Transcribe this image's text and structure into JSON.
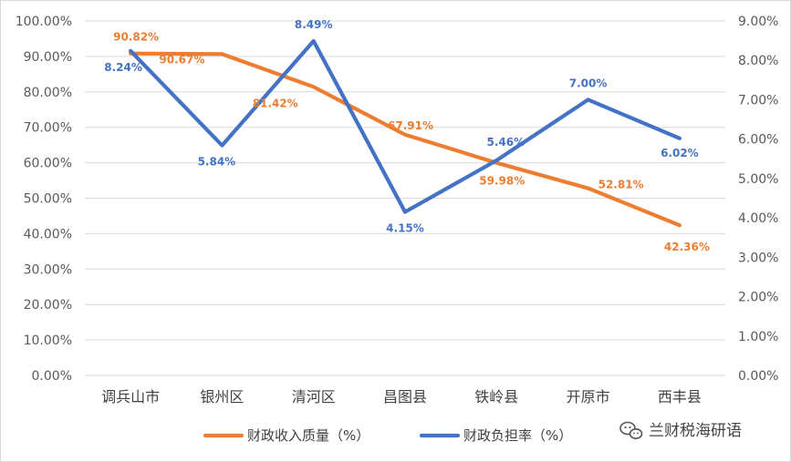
{
  "chart_data": {
    "type": "line",
    "categories": [
      "调兵山市",
      "银州区",
      "清河区",
      "昌图县",
      "铁岭县",
      "开原市",
      "西丰县"
    ],
    "series": [
      {
        "name": "财政收入质量（%）",
        "axis": "left",
        "color": "#ED7D31",
        "values": [
          90.82,
          90.67,
          81.42,
          67.91,
          59.98,
          52.81,
          42.36
        ],
        "labels": [
          "90.82%",
          "90.67%",
          "81.42%",
          "67.91%",
          "59.98%",
          "52.81%",
          "42.36%"
        ]
      },
      {
        "name": "财政负担率（%）",
        "axis": "right",
        "color": "#4472C4",
        "values": [
          8.24,
          5.84,
          8.49,
          4.15,
          5.46,
          7.0,
          6.02
        ],
        "labels": [
          "8.24%",
          "5.84%",
          "8.49%",
          "4.15%",
          "5.46%",
          "7.00%",
          "6.02%"
        ]
      }
    ],
    "y_left": {
      "min": 0,
      "max": 100,
      "ticks": [
        0,
        10,
        20,
        30,
        40,
        50,
        60,
        70,
        80,
        90,
        100
      ],
      "tick_labels": [
        "0.00%",
        "10.00%",
        "20.00%",
        "30.00%",
        "40.00%",
        "50.00%",
        "60.00%",
        "70.00%",
        "80.00%",
        "90.00%",
        "100.00%"
      ]
    },
    "y_right": {
      "min": 0,
      "max": 9,
      "ticks": [
        0,
        1,
        2,
        3,
        4,
        5,
        6,
        7,
        8,
        9
      ],
      "tick_labels": [
        "0.00%",
        "1.00%",
        "2.00%",
        "3.00%",
        "4.00%",
        "5.00%",
        "6.00%",
        "7.00%",
        "8.00%",
        "9.00%"
      ]
    },
    "grid": true,
    "legend": "bottom"
  },
  "watermark": {
    "text": "兰财税海研语",
    "icon": "wechat-icon"
  }
}
